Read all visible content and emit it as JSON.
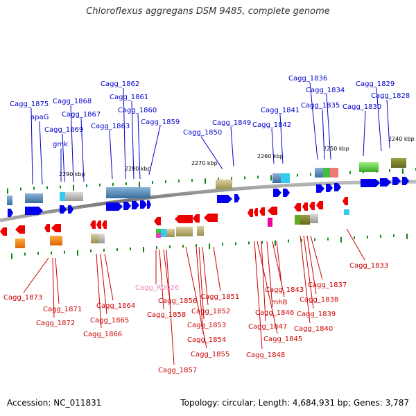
{
  "title": "Chloroflexus aggregans DSM 9485, complete genome",
  "footer": {
    "accession": "Accession: NC_011831",
    "summary": "Topology: circular; Length: 4,684,931 bp; Genes: 3,787"
  },
  "colors": {
    "top_label": "#0000cc",
    "bottom_label": "#cc0000",
    "rna_label": "#ee99cc",
    "backbone": "#888888",
    "tick": "#118811"
  },
  "kbp_ticks": [
    "2290 kbp",
    "2280 kbp",
    "2270 kbp",
    "2260 kbp",
    "2250 kbp",
    "2240 kbp"
  ],
  "top_genes": [
    "Cagg_1875",
    "apaG",
    "gmk",
    "Cagg_1869",
    "Cagg_1868",
    "Cagg_1867",
    "Cagg_1863",
    "Cagg_1862",
    "Cagg_1861",
    "Cagg_1860",
    "Cagg_1859",
    "Cagg_1850",
    "Cagg_1849",
    "Cagg_1842",
    "Cagg_1841",
    "Cagg_1836",
    "Cagg_1834",
    "Cagg_1835",
    "Cagg_1830",
    "Cagg_1829",
    "Cagg_1828"
  ],
  "bottom_genes": [
    "Cagg_1873",
    "Cagg_1871",
    "Cagg_1872",
    "Cagg_1864",
    "Cagg_1865",
    "Cagg_1866",
    "Cagg_R0026",
    "Cagg_1856",
    "Cagg_1858",
    "Cagg_1857",
    "Cagg_1851",
    "Cagg_1852",
    "Cagg_1853",
    "Cagg_1854",
    "Cagg_1855",
    "Cagg_1843",
    "rnhB",
    "Cagg_1846",
    "Cagg_1847",
    "Cagg_1845",
    "Cagg_1848",
    "Cagg_1837",
    "Cagg_1838",
    "Cagg_1839",
    "Cagg_1840",
    "Cagg_1833"
  ]
}
